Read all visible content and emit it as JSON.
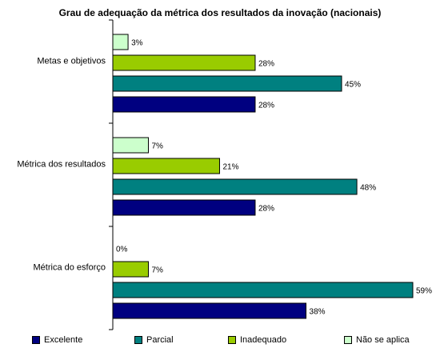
{
  "chart_data": {
    "type": "bar",
    "orientation": "horizontal",
    "title": "Grau de adequação da métrica dos resultados da inovação (nacionais)",
    "categories": [
      "Metas e objetivos",
      "Métrica dos resultados",
      "Métrica do esforço"
    ],
    "series": [
      {
        "name": "Excelente",
        "values": [
          28,
          28,
          38
        ],
        "color": "#000080"
      },
      {
        "name": "Parcial",
        "values": [
          45,
          48,
          59
        ],
        "color": "#008080"
      },
      {
        "name": "Inadequado",
        "values": [
          28,
          21,
          7
        ],
        "color": "#99CC00"
      },
      {
        "name": "Não se aplica",
        "values": [
          3,
          7,
          0
        ],
        "color": "#CCFFCC"
      }
    ],
    "value_suffix": "%",
    "xlim": [
      0,
      59
    ],
    "grid": false,
    "legend_position": "bottom"
  }
}
